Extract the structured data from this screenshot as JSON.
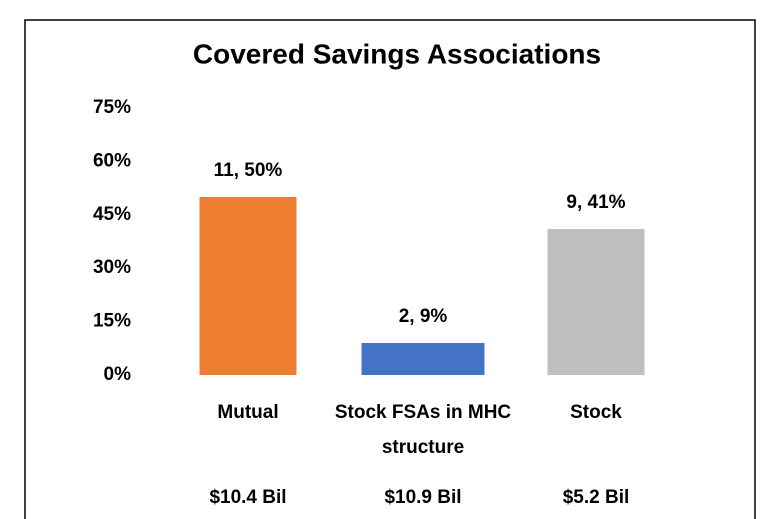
{
  "chart_data": {
    "type": "bar",
    "title": "Covered Savings Associations",
    "categories": [
      "Mutual",
      "Stock FSAs in MHC structure",
      "Stock"
    ],
    "values": [
      50,
      9,
      41
    ],
    "value_labels": [
      "11, 50%",
      "2, 9%",
      "9, 41%"
    ],
    "colors": [
      "#ed7d31",
      "#4472c4",
      "#bfbfbf"
    ],
    "category_totals": [
      "$10.4 Bil",
      "$10.9 Bil",
      "$5.2 Bil"
    ],
    "ylim": [
      0,
      75
    ],
    "yticks": [
      {
        "value": 0,
        "label": "0%"
      },
      {
        "value": 15,
        "label": "15%"
      },
      {
        "value": 30,
        "label": "30%"
      },
      {
        "value": 45,
        "label": "45%"
      },
      {
        "value": 60,
        "label": "60%"
      },
      {
        "value": 75,
        "label": "75%"
      }
    ],
    "grid": false
  }
}
